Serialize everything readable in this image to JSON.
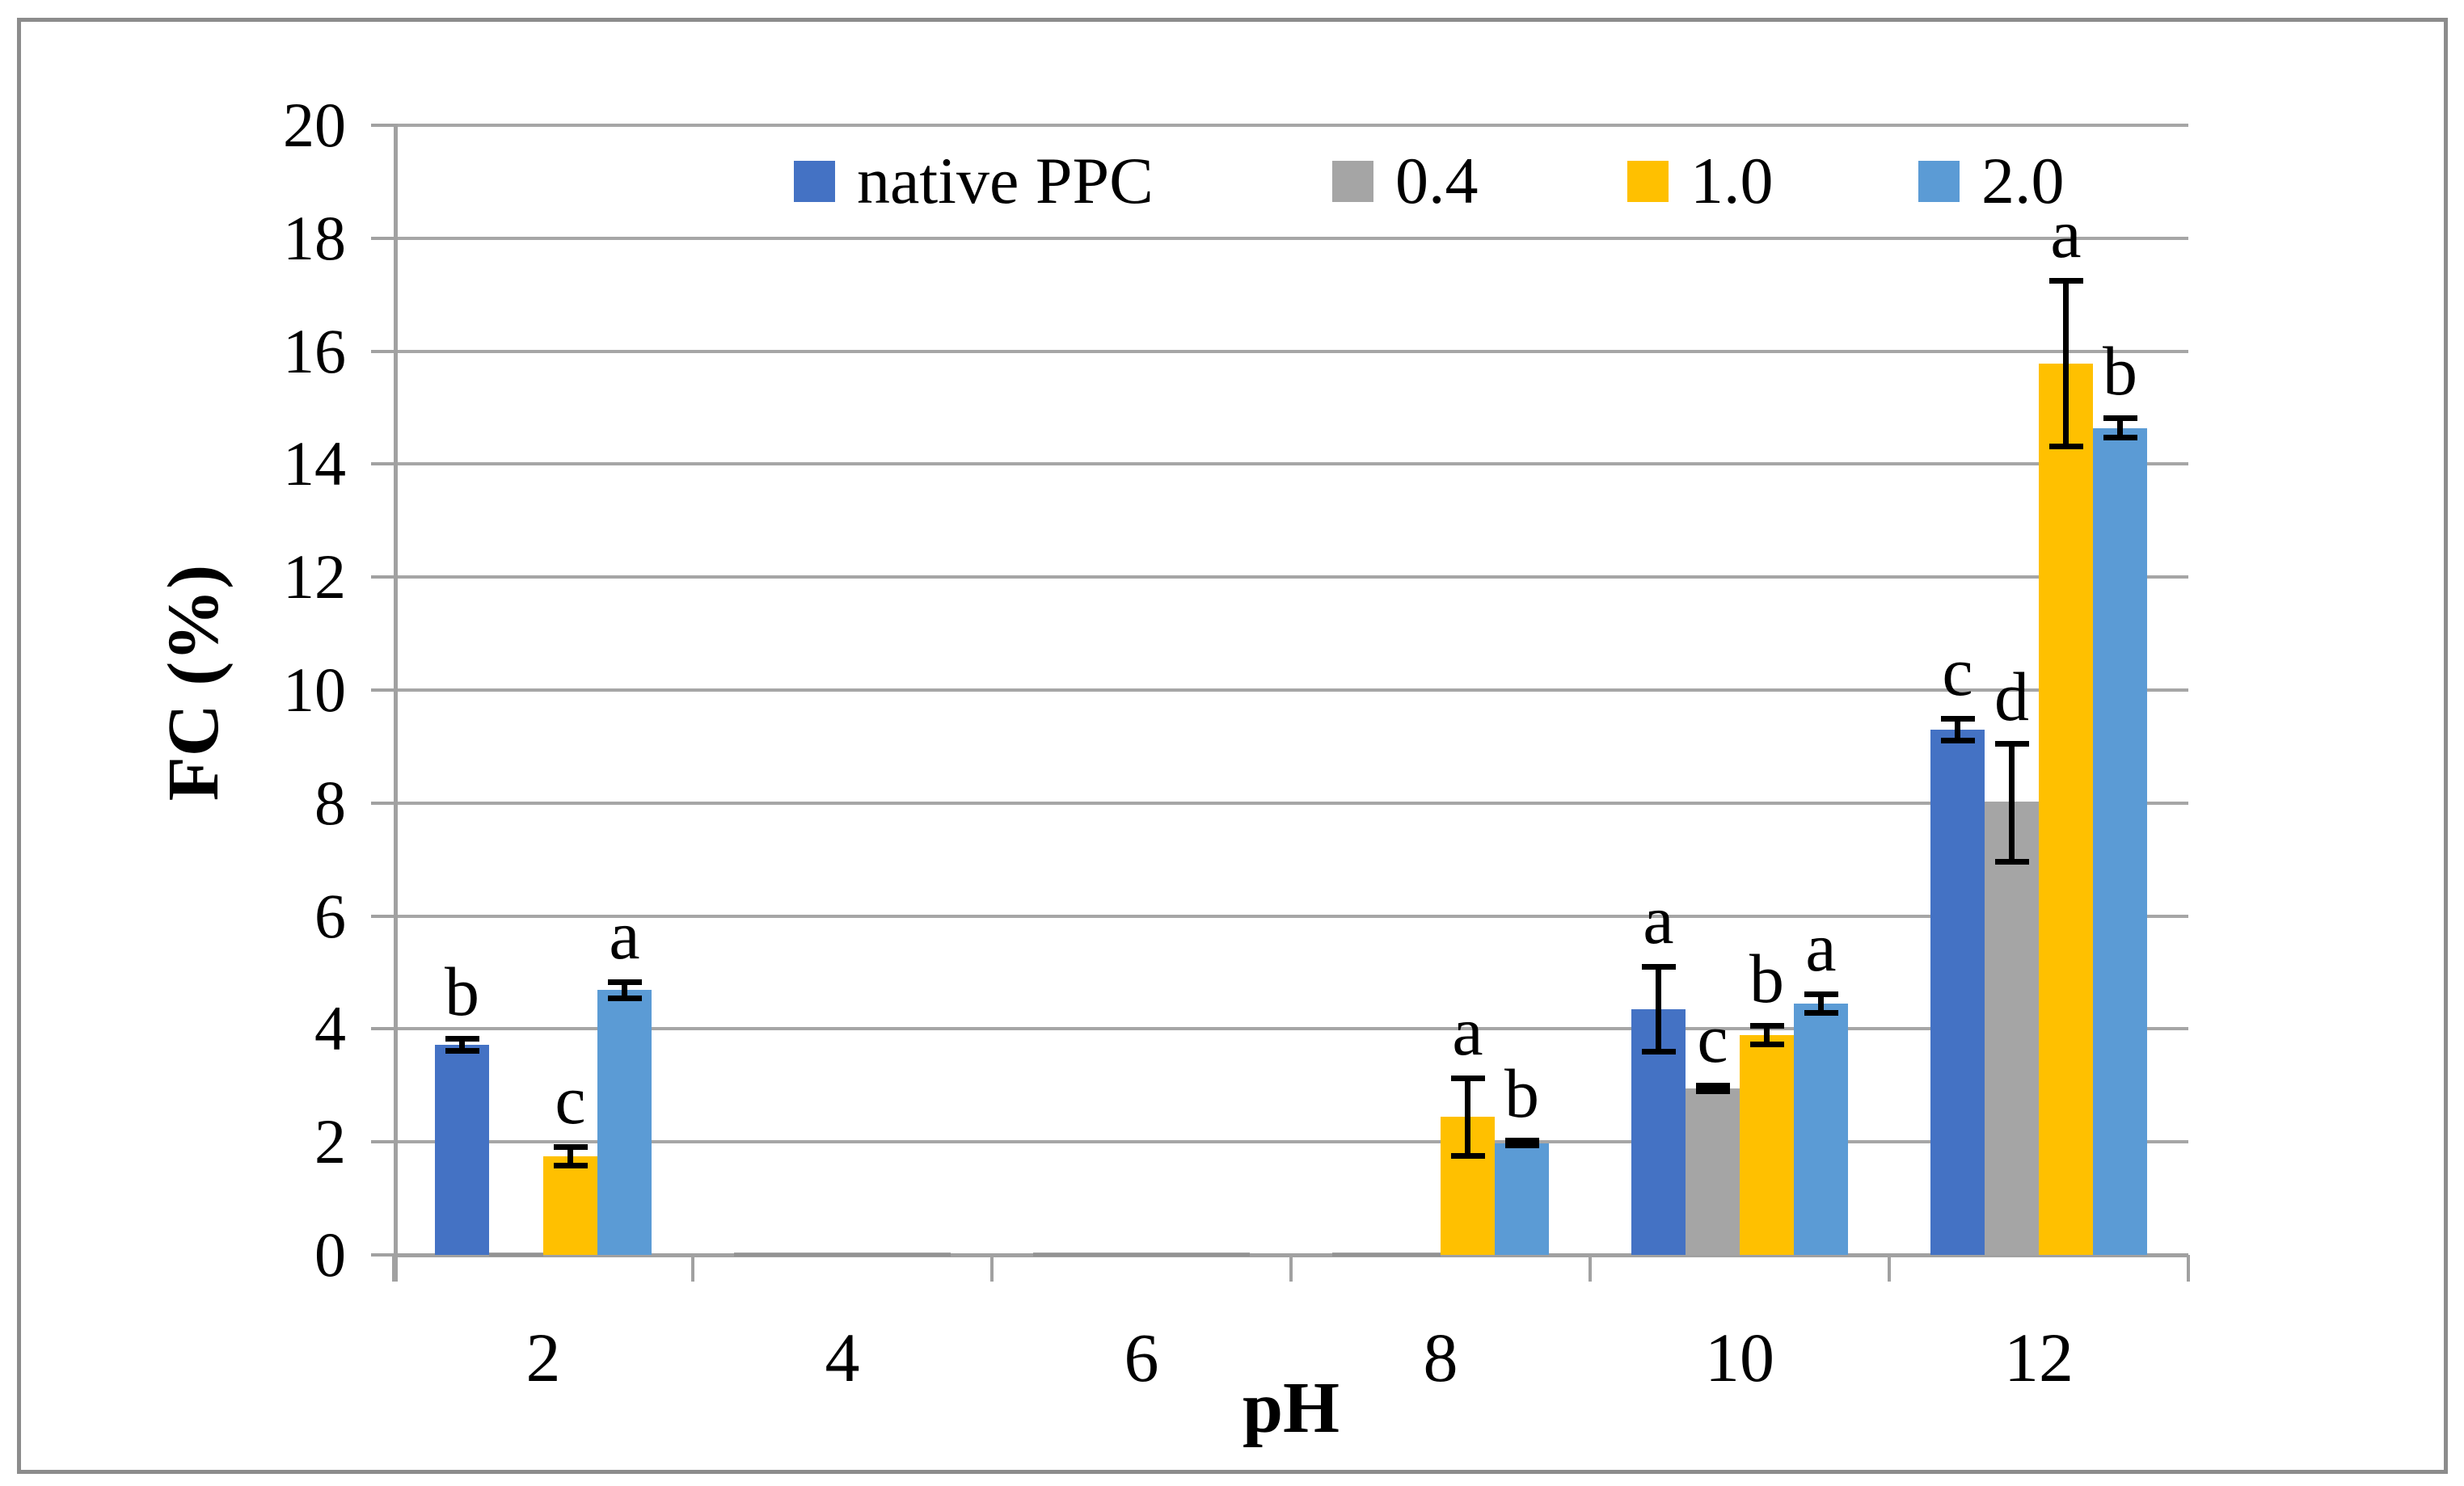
{
  "figure": {
    "background": "#ffffff",
    "border_color": "#8c8c8c"
  },
  "chart_data": {
    "type": "bar",
    "title": "",
    "xlabel": "pH",
    "ylabel": "FC (%)",
    "categories": [
      "2",
      "4",
      "6",
      "8",
      "10",
      "12"
    ],
    "ylim": [
      0,
      20
    ],
    "ytick_step": 2,
    "ytick_labels": [
      "0",
      "2",
      "4",
      "6",
      "8",
      "10",
      "12",
      "14",
      "16",
      "18",
      "20"
    ],
    "grid": "horizontal-only",
    "legend_position": "top-inside",
    "error_bar_color": "#000000",
    "gridline_color": "#a6a6a6",
    "series": [
      {
        "name": "native PPC",
        "color": "#4472C4",
        "values": [
          3.72,
          0,
          0,
          0,
          4.35,
          9.3
        ],
        "errors": [
          0.11,
          0,
          0,
          0,
          0.76,
          0.2
        ],
        "sig_labels": [
          "b",
          "",
          "",
          "",
          "a",
          "c"
        ]
      },
      {
        "name": "0.4",
        "color": "#A5A5A5",
        "values": [
          0,
          0,
          0,
          0,
          2.95,
          8.0
        ],
        "errors": [
          0,
          0,
          0,
          0,
          0.06,
          1.05
        ],
        "sig_labels": [
          "",
          "",
          "",
          "",
          "c",
          "d"
        ]
      },
      {
        "name": "1.0",
        "color": "#FFC000",
        "values": [
          1.74,
          0,
          0,
          2.44,
          3.89,
          15.78
        ],
        "errors": [
          0.17,
          0,
          0,
          0.7,
          0.17,
          1.47
        ],
        "sig_labels": [
          "c",
          "",
          "",
          "a",
          "b",
          "a"
        ]
      },
      {
        "name": "2.0",
        "color": "#5B9BD5",
        "values": [
          4.69,
          0,
          0,
          1.98,
          4.45,
          14.64
        ],
        "errors": [
          0.15,
          0,
          0,
          0.05,
          0.17,
          0.18
        ],
        "sig_labels": [
          "a",
          "",
          "",
          "b",
          "a",
          "b"
        ]
      }
    ]
  }
}
